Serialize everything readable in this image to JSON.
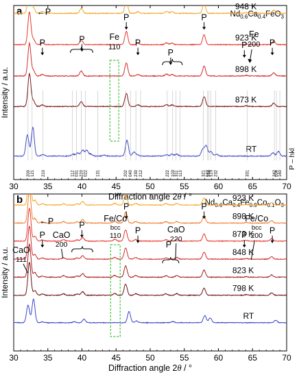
{
  "chart_data": [
    {
      "type": "line",
      "panel_letter": "a",
      "compound": {
        "base": "Nd",
        "s1": "0.6",
        "m1": "Ca",
        "s2": "0.4",
        "m2": "FeO",
        "s3": "3"
      },
      "xlabel_main": "Diffraction angle 2",
      "xlabel_theta": "θ",
      "xlabel_unit": " / °",
      "ylabel": "Intensity / a.u.",
      "xlim": [
        30,
        70
      ],
      "x_ticks": [
        30,
        35,
        40,
        45,
        50,
        55,
        60,
        65,
        70
      ],
      "y_ticks_shown": false,
      "grid": false,
      "legend": "hkl-side",
      "hkl_side_label": "P – hkl",
      "series": [
        {
          "name": "948 K",
          "color": "#f5a623",
          "baseline": 0.955
        },
        {
          "name": "923 K",
          "color": "#e8352b",
          "baseline": 0.775
        },
        {
          "name": "898 K",
          "color": "#d42a2a",
          "baseline": 0.595
        },
        {
          "name": "873 K",
          "color": "#7a1515",
          "baseline": 0.42
        },
        {
          "name": "RT",
          "color": "#3a46c8",
          "baseline": 0.135
        }
      ],
      "peaks_rt": [
        [
          32.0,
          1.6
        ],
        [
          32.8,
          2.2
        ],
        [
          34.3,
          0.12
        ],
        [
          38.7,
          0.15
        ],
        [
          39.4,
          0.25
        ],
        [
          40.1,
          0.45
        ],
        [
          40.7,
          0.45
        ],
        [
          41.3,
          0.15
        ],
        [
          43.2,
          0.08
        ],
        [
          46.6,
          1.2
        ],
        [
          47.6,
          0.3
        ],
        [
          48.1,
          0.1
        ],
        [
          52.4,
          0.1
        ],
        [
          53.2,
          0.15
        ],
        [
          53.9,
          0.15
        ],
        [
          57.7,
          0.5
        ],
        [
          58.2,
          0.8
        ],
        [
          58.9,
          0.35
        ],
        [
          59.7,
          0.15
        ],
        [
          68.0,
          0.25
        ],
        [
          68.8,
          0.35
        ]
      ],
      "peaks_ht": [
        [
          32.3,
          2.5
        ],
        [
          32.9,
          0.4
        ],
        [
          34.2,
          0.12
        ],
        [
          39.9,
          0.38
        ],
        [
          46.5,
          1.0
        ],
        [
          48.2,
          0.12
        ],
        [
          52.4,
          0.14
        ],
        [
          53.2,
          0.12
        ],
        [
          57.9,
          0.75
        ],
        [
          64.1,
          0.05
        ],
        [
          68.1,
          0.25
        ]
      ],
      "fe_box": {
        "label": "Fe",
        "hkl": "110",
        "x_range": [
          44.1,
          45.4
        ]
      },
      "annotations": [
        {
          "text": "←P",
          "x": 34.4,
          "y": 1.85
        },
        {
          "text": "P",
          "x": 34.2,
          "y": 1.34
        },
        {
          "text": "P",
          "x": 40.0,
          "y": 1.4
        },
        {
          "text": "P",
          "x": 46.5,
          "y": 1.76
        },
        {
          "text": "P",
          "x": 48.2,
          "y": 1.34
        },
        {
          "text": "P",
          "x": 53.0,
          "y": 1.18
        },
        {
          "text": "P",
          "x": 57.9,
          "y": 1.76
        },
        {
          "text": "P",
          "x": 63.8,
          "y": 1.3
        },
        {
          "text": "P",
          "x": 67.9,
          "y": 1.34
        }
      ],
      "fe200": {
        "label": "Fe",
        "hkl": "200",
        "x": 65.2
      },
      "hkl_labels": [
        {
          "x": 32.1,
          "text": "200"
        },
        {
          "x": 32.7,
          "text": "121"
        },
        {
          "x": 34.3,
          "text": "210"
        },
        {
          "x": 38.6,
          "text": "112"
        },
        {
          "x": 39.2,
          "text": "031"
        },
        {
          "x": 39.9,
          "text": "220"
        },
        {
          "x": 40.5,
          "text": "022"
        },
        {
          "x": 42.3,
          "text": "131"
        },
        {
          "x": 46.4,
          "text": "202"
        },
        {
          "x": 47.1,
          "text": "040"
        },
        {
          "x": 47.9,
          "text": "230"
        },
        {
          "x": 48.6,
          "text": "212"
        },
        {
          "x": 52.5,
          "text": "222"
        },
        {
          "x": 53.3,
          "text": "103"
        },
        {
          "x": 53.8,
          "text": "311"
        },
        {
          "x": 54.4,
          "text": "113"
        },
        {
          "x": 57.8,
          "text": "321"
        },
        {
          "x": 58.4,
          "text": "042"
        },
        {
          "x": 58.9,
          "text": "123"
        },
        {
          "x": 58.6,
          "text": "240"
        },
        {
          "x": 59.6,
          "text": "232"
        },
        {
          "x": 64.2,
          "text": "331"
        },
        {
          "x": 68.2,
          "text": "242"
        },
        {
          "x": 68.5,
          "text": "004"
        },
        {
          "x": 69.0,
          "text": "160"
        }
      ]
    },
    {
      "type": "line",
      "panel_letter": "b",
      "compound": {
        "base": "Nd",
        "s1": "0.6",
        "m1": "Ca",
        "s2": "0.4",
        "m2": "Fe",
        "s3": "0.9",
        "m3": "Co",
        "s4": "0.1",
        "m4": "O",
        "s5": "3"
      },
      "xlabel_main": "Diffraction angle 2",
      "xlabel_theta": "θ",
      "xlabel_unit": " / °",
      "ylabel": "Intensity / a.u.",
      "xlim": [
        30,
        70
      ],
      "x_ticks": [
        30,
        35,
        40,
        45,
        50,
        55,
        60,
        65,
        70
      ],
      "y_ticks_shown": false,
      "grid": false,
      "legend": "right-of-traces",
      "series": [
        {
          "name": "923 K",
          "color": "#f5a623",
          "baseline": 0.93
        },
        {
          "name": "898 K",
          "color": "#f07a2a",
          "baseline": 0.815
        },
        {
          "name": "873 K",
          "color": "#e8352b",
          "baseline": 0.7
        },
        {
          "name": "848 K",
          "color": "#d42a2a",
          "baseline": 0.585
        },
        {
          "name": "823 K",
          "color": "#a51e1e",
          "baseline": 0.47
        },
        {
          "name": "798 K",
          "color": "#6a1010",
          "baseline": 0.355
        },
        {
          "name": "RT",
          "color": "#3a46c8",
          "baseline": 0.18
        }
      ],
      "peaks_rt": [
        [
          32.1,
          1.5
        ],
        [
          32.9,
          2.0
        ],
        [
          34.2,
          0.08
        ],
        [
          38.9,
          0.08
        ],
        [
          40.3,
          0.3
        ],
        [
          46.9,
          0.95
        ],
        [
          48.0,
          0.15
        ],
        [
          53.3,
          0.1
        ],
        [
          58.0,
          0.6
        ],
        [
          58.8,
          0.4
        ],
        [
          68.4,
          0.2
        ]
      ],
      "peaks_ht": [
        [
          32.3,
          2.8
        ],
        [
          33.1,
          0.4
        ],
        [
          34.2,
          0.1
        ],
        [
          37.3,
          0.12
        ],
        [
          39.3,
          0.1
        ],
        [
          40.1,
          0.3
        ],
        [
          44.8,
          0.15
        ],
        [
          46.4,
          0.95
        ],
        [
          47.9,
          0.14
        ],
        [
          52.3,
          0.12
        ],
        [
          53.9,
          0.14
        ],
        [
          57.9,
          0.6
        ],
        [
          64.1,
          0.05
        ],
        [
          67.8,
          0.2
        ]
      ],
      "feco_box": {
        "label": "Fe/Co",
        "sub": "bcc",
        "hkl": "110",
        "x_range": [
          44.2,
          45.6
        ]
      },
      "annotations_left": [
        {
          "text": "CaO",
          "sub": "111",
          "x": 31.1
        },
        {
          "text": "←P",
          "x": 34.8
        }
      ],
      "annotations": [
        {
          "text": "P",
          "x": 34.2,
          "y": 1.2
        },
        {
          "text": "P",
          "x": 40.0,
          "y": 1.38
        },
        {
          "text": "P",
          "x": 46.5,
          "y": 1.72
        },
        {
          "text": "P",
          "x": 48.2,
          "y": 1.28
        },
        {
          "text": "P",
          "x": 57.9,
          "y": 1.72
        },
        {
          "text": "P",
          "x": 63.8,
          "y": 1.2
        },
        {
          "text": "P",
          "x": 67.9,
          "y": 1.28
        }
      ],
      "cao200": {
        "label": "CaO",
        "hkl": "200",
        "x": 37.0
      },
      "cao220": {
        "label": "CaO",
        "hkl": "220",
        "x": 53.8
      },
      "p_cao": {
        "text": "P",
        "x": 52.7
      },
      "feco200": {
        "label": "Fe/Co",
        "sub": "bcc",
        "hkl": "200",
        "x": 65.6
      }
    }
  ]
}
